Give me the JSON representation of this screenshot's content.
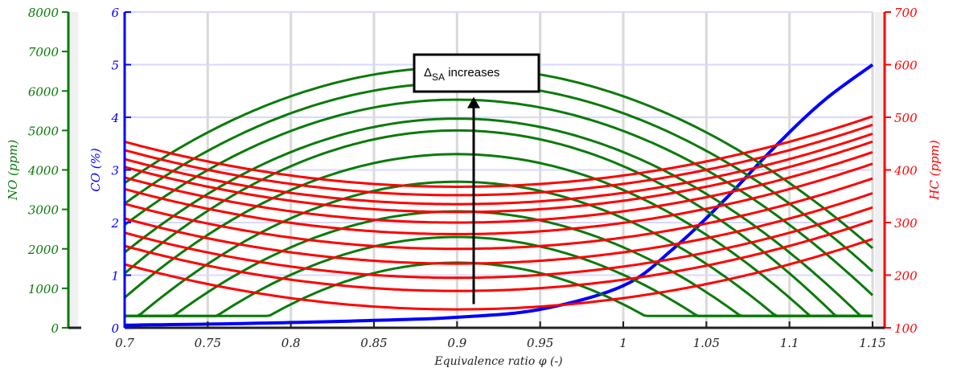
{
  "chart_data": {
    "type": "line",
    "xlabel": "Equivalence ratio   φ (-)",
    "x_ticks": [
      "0.7",
      "0.75",
      "0.8",
      "0.85",
      "0.9",
      "0.95",
      "1",
      "1.05",
      "1.1",
      "1.15"
    ],
    "xlim": [
      0.7,
      1.15
    ],
    "grid": true,
    "axes": {
      "no": {
        "label": "NO (ppm)",
        "color": "#0a7a0a",
        "ylim": [
          0,
          8000
        ],
        "ticks": [
          "0",
          "1000",
          "2000",
          "3000",
          "4000",
          "5000",
          "6000",
          "7000",
          "8000"
        ]
      },
      "co": {
        "label": "CO (%)",
        "color": "#0000ff",
        "ylim": [
          0,
          6
        ],
        "ticks": [
          "0",
          "1",
          "2",
          "3",
          "4",
          "5",
          "6"
        ]
      },
      "hc": {
        "label": "HC (ppm)",
        "color": "#ff0000",
        "ylim": [
          100,
          700
        ],
        "ticks": [
          "100",
          "200",
          "300",
          "400",
          "500",
          "600",
          "700"
        ]
      }
    },
    "series": [
      {
        "axis": "co",
        "x": [
          0.7,
          0.75,
          0.8,
          0.85,
          0.9,
          0.95,
          1.0,
          1.03,
          1.06,
          1.09,
          1.12,
          1.15
        ],
        "y": [
          0.05,
          0.07,
          0.1,
          0.14,
          0.2,
          0.35,
          0.8,
          1.5,
          2.4,
          3.4,
          4.3,
          5.0
        ]
      },
      {
        "axis": "no",
        "shape": "clipped-parabola",
        "peak_x": 0.9,
        "peak": 1650,
        "zero_width": 0.125,
        "floor": 300
      },
      {
        "axis": "no",
        "shape": "clipped-parabola",
        "peak_x": 0.9,
        "peak": 2300,
        "zero_width": 0.155,
        "floor": 300
      },
      {
        "axis": "no",
        "shape": "clipped-parabola",
        "peak_x": 0.9,
        "peak": 2950,
        "zero_width": 0.18,
        "floor": 300
      },
      {
        "axis": "no",
        "shape": "clipped-parabola",
        "peak_x": 0.9,
        "peak": 3700,
        "zero_width": 0.2,
        "floor": 300
      },
      {
        "axis": "no",
        "shape": "clipped-parabola",
        "peak_x": 0.9,
        "peak": 4400,
        "zero_width": 0.22,
        "floor": 300
      },
      {
        "axis": "no",
        "shape": "clipped-parabola",
        "peak_x": 0.9,
        "peak": 5000,
        "zero_width": 0.235,
        "floor": 300
      },
      {
        "axis": "no",
        "shape": "clipped-parabola",
        "peak_x": 0.9,
        "peak": 5300,
        "zero_width": 0.25,
        "floor": 300
      },
      {
        "axis": "no",
        "shape": "clipped-parabola",
        "peak_x": 0.9,
        "peak": 5780,
        "zero_width": 0.27,
        "floor": 300
      },
      {
        "axis": "no",
        "shape": "clipped-parabola",
        "peak_x": 0.9,
        "peak": 6200,
        "zero_width": 0.285,
        "floor": 300
      },
      {
        "axis": "no",
        "shape": "clipped-parabola",
        "peak_x": 0.9,
        "peak": 6600,
        "zero_width": 0.3,
        "floor": 300
      },
      {
        "axis": "hc",
        "shape": "parabola",
        "vertex_x": 0.9,
        "vertex": 135,
        "coef": 2140
      },
      {
        "axis": "hc",
        "shape": "parabola",
        "vertex_x": 0.9,
        "vertex": 170,
        "coef": 2140
      },
      {
        "axis": "hc",
        "shape": "parabola",
        "vertex_x": 0.9,
        "vertex": 195,
        "coef": 2140
      },
      {
        "axis": "hc",
        "shape": "parabola",
        "vertex_x": 0.9,
        "vertex": 222,
        "coef": 2140
      },
      {
        "axis": "hc",
        "shape": "parabola",
        "vertex_x": 0.9,
        "vertex": 250,
        "coef": 2140
      },
      {
        "axis": "hc",
        "shape": "parabola",
        "vertex_x": 0.9,
        "vertex": 278,
        "coef": 2140
      },
      {
        "axis": "hc",
        "shape": "parabola",
        "vertex_x": 0.9,
        "vertex": 300,
        "coef": 2140
      },
      {
        "axis": "hc",
        "shape": "parabola",
        "vertex_x": 0.9,
        "vertex": 320,
        "coef": 2140
      },
      {
        "axis": "hc",
        "shape": "parabola",
        "vertex_x": 0.9,
        "vertex": 335,
        "coef": 2140
      },
      {
        "axis": "hc",
        "shape": "parabola",
        "vertex_x": 0.9,
        "vertex": 352,
        "coef": 2140
      },
      {
        "axis": "hc",
        "shape": "parabola",
        "vertex_x": 0.9,
        "vertex": 368,
        "coef": 2140
      }
    ],
    "annotation": {
      "text_main": "Δ",
      "text_sub": "SA",
      "text_rest": " increases",
      "arrow_x": 0.91,
      "arrow_from_no": 600,
      "arrow_to_no": 5850
    }
  }
}
